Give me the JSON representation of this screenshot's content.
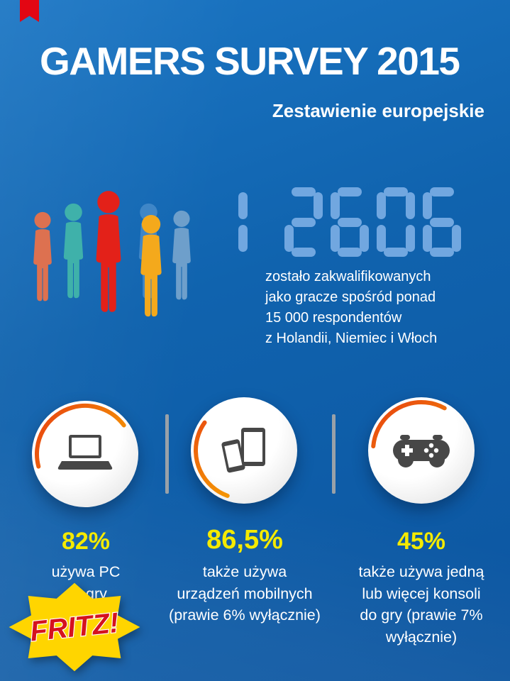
{
  "title": "GAMERS SURVEY 2015",
  "subtitle": "Zestawienie europejskie",
  "counter": {
    "digits": "12606",
    "caption_lines": [
      "zostało zakwalifikowanych",
      "jako gracze spośród ponad",
      "15 000 respondentów",
      "z Holandii, Niemiec i Włoch"
    ]
  },
  "people": {
    "colors": [
      "#dd7150",
      "#3fb1aa",
      "#3f86c7",
      "#6e9fcb",
      "#f4a91c",
      "#e32119"
    ]
  },
  "stats": [
    {
      "icon": "laptop-icon",
      "percent": "82%",
      "lines": [
        "używa PC",
        "do gry",
        "",
        ""
      ]
    },
    {
      "icon": "mobile-devices-icon",
      "percent": "86,5%",
      "lines": [
        "także używa",
        "urządzeń mobilnych",
        "(prawie 6% wyłącznie)",
        ""
      ]
    },
    {
      "icon": "game-controller-icon",
      "percent": "45%",
      "lines": [
        "także używa jedną",
        "lub więcej konsoli",
        "do gry (prawie 7%",
        "wyłącznie)"
      ]
    }
  ],
  "brand": {
    "logo_text": "FRITZ!"
  },
  "colors": {
    "background_blue": "#1063ae",
    "accent_yellow": "#f4ea00",
    "digit_blue": "#71a7e0",
    "arc_orange": "#f9b000",
    "arc_red": "#e74011",
    "ribbon_red": "#e30613",
    "logo_yellow": "#ffd500",
    "logo_red": "#d5121e",
    "icon_gray": "#474747"
  },
  "chart_data": {
    "type": "table",
    "title": "GAMERS SURVEY 2015",
    "subtitle": "Zestawienie europejskie",
    "qualified_gamers_display": "12606",
    "note": "zostało zakwalifikowanych jako gracze spośród ponad 15 000 respondentów z Holandii, Niemiec i Włoch",
    "categories": [
      "używa PC do gry",
      "także używa urządzeń mobilnych",
      "także używa jedną lub więcej konsoli do gry"
    ],
    "values": [
      82,
      86.5,
      45
    ],
    "annotations": [
      "prawie 6% wyłącznie mobilnie",
      "prawie 7% wyłącznie konsole"
    ]
  }
}
